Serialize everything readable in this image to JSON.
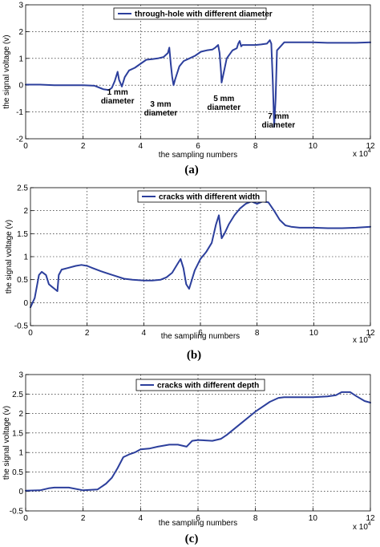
{
  "chart_data": [
    {
      "type": "line",
      "caption": "(a)",
      "xlabel": "the sampling numbers",
      "ylabel": "the signal voltage (v)",
      "x_multiplier": "x 10",
      "x_exponent": "4",
      "xlim": [
        0,
        12
      ],
      "ylim": [
        -2,
        3
      ],
      "xticks": [
        "0",
        "2",
        "4",
        "6",
        "8",
        "10",
        "12"
      ],
      "yticks": [
        "-2",
        "-1",
        "0",
        "1",
        "2",
        "3"
      ],
      "grid": true,
      "legend_position": "top-center",
      "annotations": [
        {
          "lines": [
            "1 mm",
            "diameter"
          ],
          "x": 3.2,
          "y": -0.35
        },
        {
          "lines": [
            "3 mm",
            "diameter"
          ],
          "x": 4.7,
          "y": -0.8
        },
        {
          "lines": [
            "5 mm",
            "diameter"
          ],
          "x": 6.9,
          "y": -0.6
        },
        {
          "lines": [
            "7 mm",
            "diameter"
          ],
          "x": 8.8,
          "y": -1.25
        }
      ],
      "series": [
        {
          "name": "through-hole with different diameter",
          "color": "#2c3f9c",
          "x": [
            0,
            0.5,
            1,
            1.5,
            2,
            2.4,
            2.7,
            2.9,
            3.0,
            3.1,
            3.2,
            3.25,
            3.35,
            3.45,
            3.6,
            3.8,
            4.0,
            4.2,
            4.4,
            4.6,
            4.8,
            4.95,
            5.0,
            5.05,
            5.1,
            5.15,
            5.2,
            5.35,
            5.5,
            5.7,
            5.9,
            6.1,
            6.3,
            6.5,
            6.6,
            6.7,
            6.75,
            6.8,
            6.82,
            6.9,
            7.0,
            7.2,
            7.35,
            7.4,
            7.45,
            7.5,
            7.55,
            7.6,
            7.8,
            8.0,
            8.2,
            8.4,
            8.5,
            8.55,
            8.6,
            8.65,
            8.7,
            8.75,
            9.0,
            9.5,
            10.0,
            10.5,
            11.0,
            11.5,
            12.0
          ],
          "y": [
            0.02,
            0.02,
            0.0,
            0.0,
            0.0,
            -0.02,
            -0.15,
            -0.18,
            -0.1,
            0.15,
            0.5,
            0.2,
            -0.05,
            0.3,
            0.55,
            0.65,
            0.8,
            0.95,
            0.97,
            1.0,
            1.05,
            1.2,
            1.4,
            0.8,
            0.3,
            0.0,
            0.2,
            0.7,
            0.9,
            1.0,
            1.1,
            1.25,
            1.3,
            1.33,
            1.4,
            1.5,
            1.2,
            0.5,
            0.1,
            0.5,
            1.0,
            1.3,
            1.38,
            1.55,
            1.65,
            1.45,
            1.5,
            1.5,
            1.5,
            1.5,
            1.52,
            1.55,
            1.68,
            1.55,
            0.2,
            -1.55,
            -0.5,
            1.3,
            1.6,
            1.6,
            1.6,
            1.58,
            1.58,
            1.58,
            1.6
          ]
        }
      ]
    },
    {
      "type": "line",
      "caption": "(b)",
      "xlabel": "the sampling numbers",
      "ylabel": "the signal voltage (v)",
      "x_multiplier": "x 10",
      "x_exponent": "4",
      "xlim": [
        0,
        12
      ],
      "ylim": [
        -0.5,
        2.5
      ],
      "xticks": [
        "0",
        "2",
        "4",
        "6",
        "8",
        "10",
        "12"
      ],
      "yticks": [
        "-0.5",
        "0",
        "0.5",
        "1",
        "1.5",
        "2",
        "2.5"
      ],
      "grid": true,
      "legend_position": "top-center",
      "series": [
        {
          "name": "cracks with different width",
          "color": "#2c3f9c",
          "x": [
            0,
            0.15,
            0.3,
            0.4,
            0.55,
            0.65,
            0.75,
            0.85,
            0.95,
            1.0,
            1.1,
            1.3,
            1.6,
            1.8,
            2.0,
            2.2,
            2.5,
            2.8,
            3.0,
            3.3,
            3.6,
            4.0,
            4.3,
            4.6,
            4.8,
            5.0,
            5.2,
            5.3,
            5.4,
            5.5,
            5.6,
            5.8,
            6.0,
            6.2,
            6.4,
            6.55,
            6.65,
            6.75,
            6.85,
            7.0,
            7.2,
            7.4,
            7.6,
            7.8,
            8.0,
            8.2,
            8.4,
            8.6,
            8.8,
            9.0,
            9.2,
            9.5,
            10.0,
            10.5,
            11.0,
            11.5,
            12.0
          ],
          "y": [
            -0.1,
            0.1,
            0.6,
            0.67,
            0.6,
            0.4,
            0.35,
            0.3,
            0.25,
            0.6,
            0.72,
            0.75,
            0.8,
            0.82,
            0.8,
            0.75,
            0.68,
            0.62,
            0.58,
            0.52,
            0.5,
            0.48,
            0.48,
            0.5,
            0.55,
            0.65,
            0.85,
            0.95,
            0.75,
            0.4,
            0.3,
            0.7,
            0.95,
            1.1,
            1.3,
            1.7,
            1.9,
            1.4,
            1.5,
            1.7,
            1.9,
            2.05,
            2.15,
            2.2,
            2.15,
            2.2,
            2.18,
            2.0,
            1.8,
            1.68,
            1.65,
            1.63,
            1.63,
            1.62,
            1.62,
            1.63,
            1.65
          ]
        }
      ]
    },
    {
      "type": "line",
      "caption": "(c)",
      "xlabel": "the sampling numbers",
      "ylabel": "the signal voltage (v)",
      "x_multiplier": "x 10",
      "x_exponent": "4",
      "xlim": [
        0,
        12
      ],
      "ylim": [
        -0.5,
        3
      ],
      "xticks": [
        "0",
        "2",
        "4",
        "6",
        "8",
        "10",
        "12"
      ],
      "yticks": [
        "-0.5",
        "0",
        "0.5",
        "1",
        "1.5",
        "2",
        "2.5",
        "3"
      ],
      "grid": true,
      "legend_position": "top-center",
      "series": [
        {
          "name": "cracks with different depth",
          "color": "#2c3f9c",
          "x": [
            0,
            0.5,
            0.8,
            1.0,
            1.5,
            2.0,
            2.5,
            2.8,
            3.0,
            3.2,
            3.4,
            3.6,
            3.8,
            4.0,
            4.3,
            4.6,
            5.0,
            5.3,
            5.6,
            5.8,
            6.0,
            6.5,
            6.8,
            7.0,
            7.5,
            8.0,
            8.5,
            8.8,
            9.0,
            9.5,
            10.0,
            10.5,
            10.8,
            11.0,
            11.3,
            11.5,
            11.8,
            12.0
          ],
          "y": [
            0.02,
            0.03,
            0.08,
            0.1,
            0.1,
            0.03,
            0.05,
            0.2,
            0.35,
            0.6,
            0.88,
            0.95,
            1.0,
            1.08,
            1.1,
            1.15,
            1.2,
            1.2,
            1.15,
            1.3,
            1.32,
            1.3,
            1.35,
            1.45,
            1.75,
            2.05,
            2.3,
            2.4,
            2.42,
            2.42,
            2.42,
            2.44,
            2.47,
            2.55,
            2.55,
            2.45,
            2.32,
            2.28
          ]
        }
      ]
    }
  ]
}
